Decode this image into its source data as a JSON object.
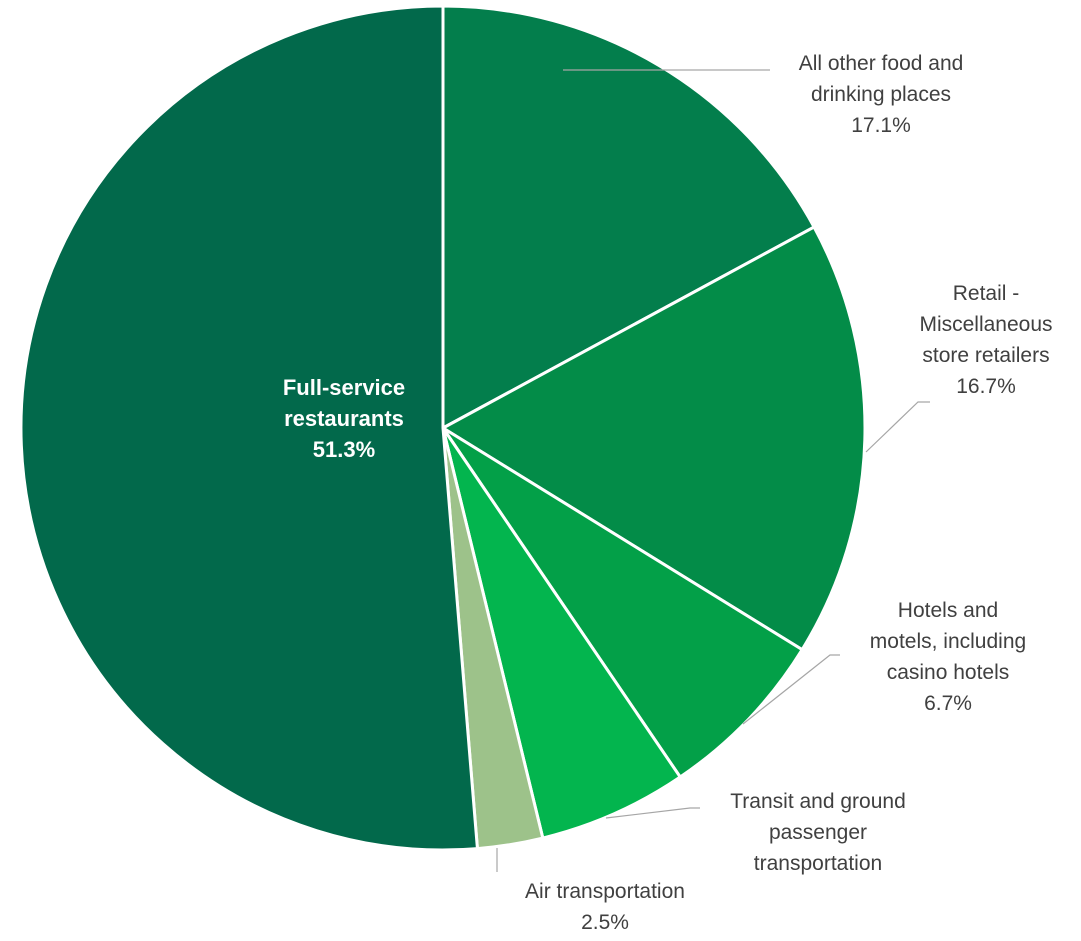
{
  "chart_data": {
    "type": "pie",
    "title": "",
    "start_angle_deg": 0,
    "direction": "clockwise",
    "slices": [
      {
        "name": "All other food and drinking places",
        "label_lines": [
          "All other food and",
          "drinking places"
        ],
        "percent_label": "17.1%",
        "value": 17.1,
        "color": "#037e4c",
        "label_position": "outside"
      },
      {
        "name": "Retail - Miscellaneous store retailers",
        "label_lines": [
          "Retail -",
          "Miscellaneous",
          "store retailers"
        ],
        "percent_label": "16.7%",
        "value": 16.7,
        "color": "#038c48",
        "label_position": "outside"
      },
      {
        "name": "Hotels and motels, including casino hotels",
        "label_lines": [
          "Hotels and",
          "motels, including",
          "casino hotels"
        ],
        "percent_label": "6.7%",
        "value": 6.7,
        "color": "#03a048",
        "label_position": "outside"
      },
      {
        "name": "Transit and ground passenger transportation",
        "label_lines": [
          "Transit and ground",
          "passenger",
          "transportation"
        ],
        "percent_label": "",
        "value": 5.7,
        "color": "#03b54e",
        "label_position": "outside"
      },
      {
        "name": "Air transportation",
        "label_lines": [
          "Air transportation"
        ],
        "percent_label": "2.5%",
        "value": 2.5,
        "color": "#9dc28a",
        "label_position": "outside"
      },
      {
        "name": "Full-service restaurants",
        "label_lines": [
          "Full-service",
          "restaurants"
        ],
        "percent_label": "51.3%",
        "value": 51.3,
        "color": "#02694b",
        "label_position": "inside"
      }
    ]
  }
}
